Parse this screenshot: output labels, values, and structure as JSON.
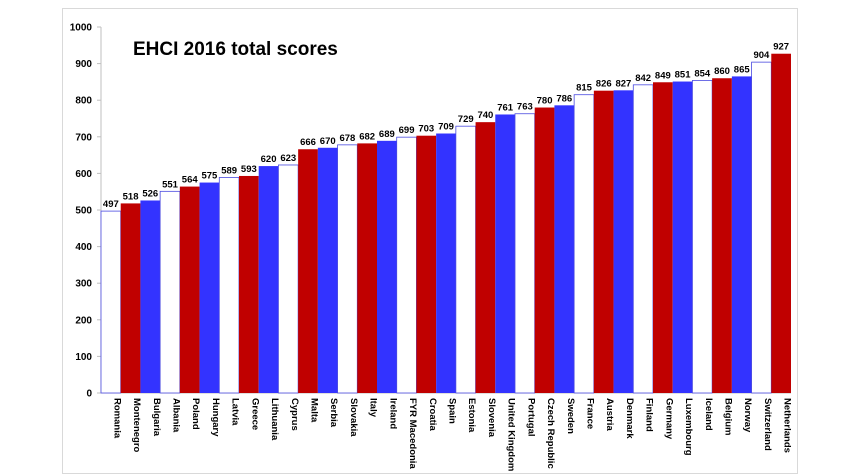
{
  "chart_data": {
    "type": "bar",
    "title": "EHCI 2016 total scores",
    "ylim": [
      0,
      1000
    ],
    "yticks": [
      0,
      100,
      200,
      300,
      400,
      500,
      600,
      700,
      800,
      900,
      1000
    ],
    "grid": false,
    "categories": [
      "Romania",
      "Montenegro",
      "Bulgaria",
      "Albania",
      "Poland",
      "Hungary",
      "Latvia",
      "Greece",
      "Lithuania",
      "Cyprus",
      "Malta",
      "Serbia",
      "Slovakia",
      "Italy",
      "Ireland",
      "FYR Macedonia",
      "Croatia",
      "Spain",
      "Estonia",
      "Slovenia",
      "United Kingdom",
      "Portugal",
      "Czech Republic",
      "Sweden",
      "France",
      "Austria",
      "Denmark",
      "Finland",
      "Germany",
      "Luxembourg",
      "Iceland",
      "Belgium",
      "Norway",
      "Switzerland",
      "Netherlands"
    ],
    "values": [
      497,
      518,
      526,
      551,
      564,
      575,
      589,
      593,
      620,
      623,
      666,
      670,
      678,
      682,
      689,
      699,
      703,
      709,
      729,
      740,
      761,
      763,
      780,
      786,
      815,
      826,
      827,
      842,
      849,
      851,
      854,
      860,
      865,
      904,
      927
    ],
    "bar_colors": [
      "white",
      "red",
      "blue",
      "white",
      "red",
      "blue",
      "white",
      "red",
      "blue",
      "white",
      "red",
      "blue",
      "white",
      "red",
      "blue",
      "white",
      "red",
      "blue",
      "white",
      "red",
      "blue",
      "white",
      "red",
      "blue",
      "white",
      "red",
      "blue",
      "white",
      "red",
      "blue",
      "white",
      "red",
      "blue",
      "white",
      "red"
    ],
    "palette": {
      "red": "#c00000",
      "blue": "#3333ff",
      "white": "#ffffff",
      "outline": "#4a4ae0"
    }
  }
}
